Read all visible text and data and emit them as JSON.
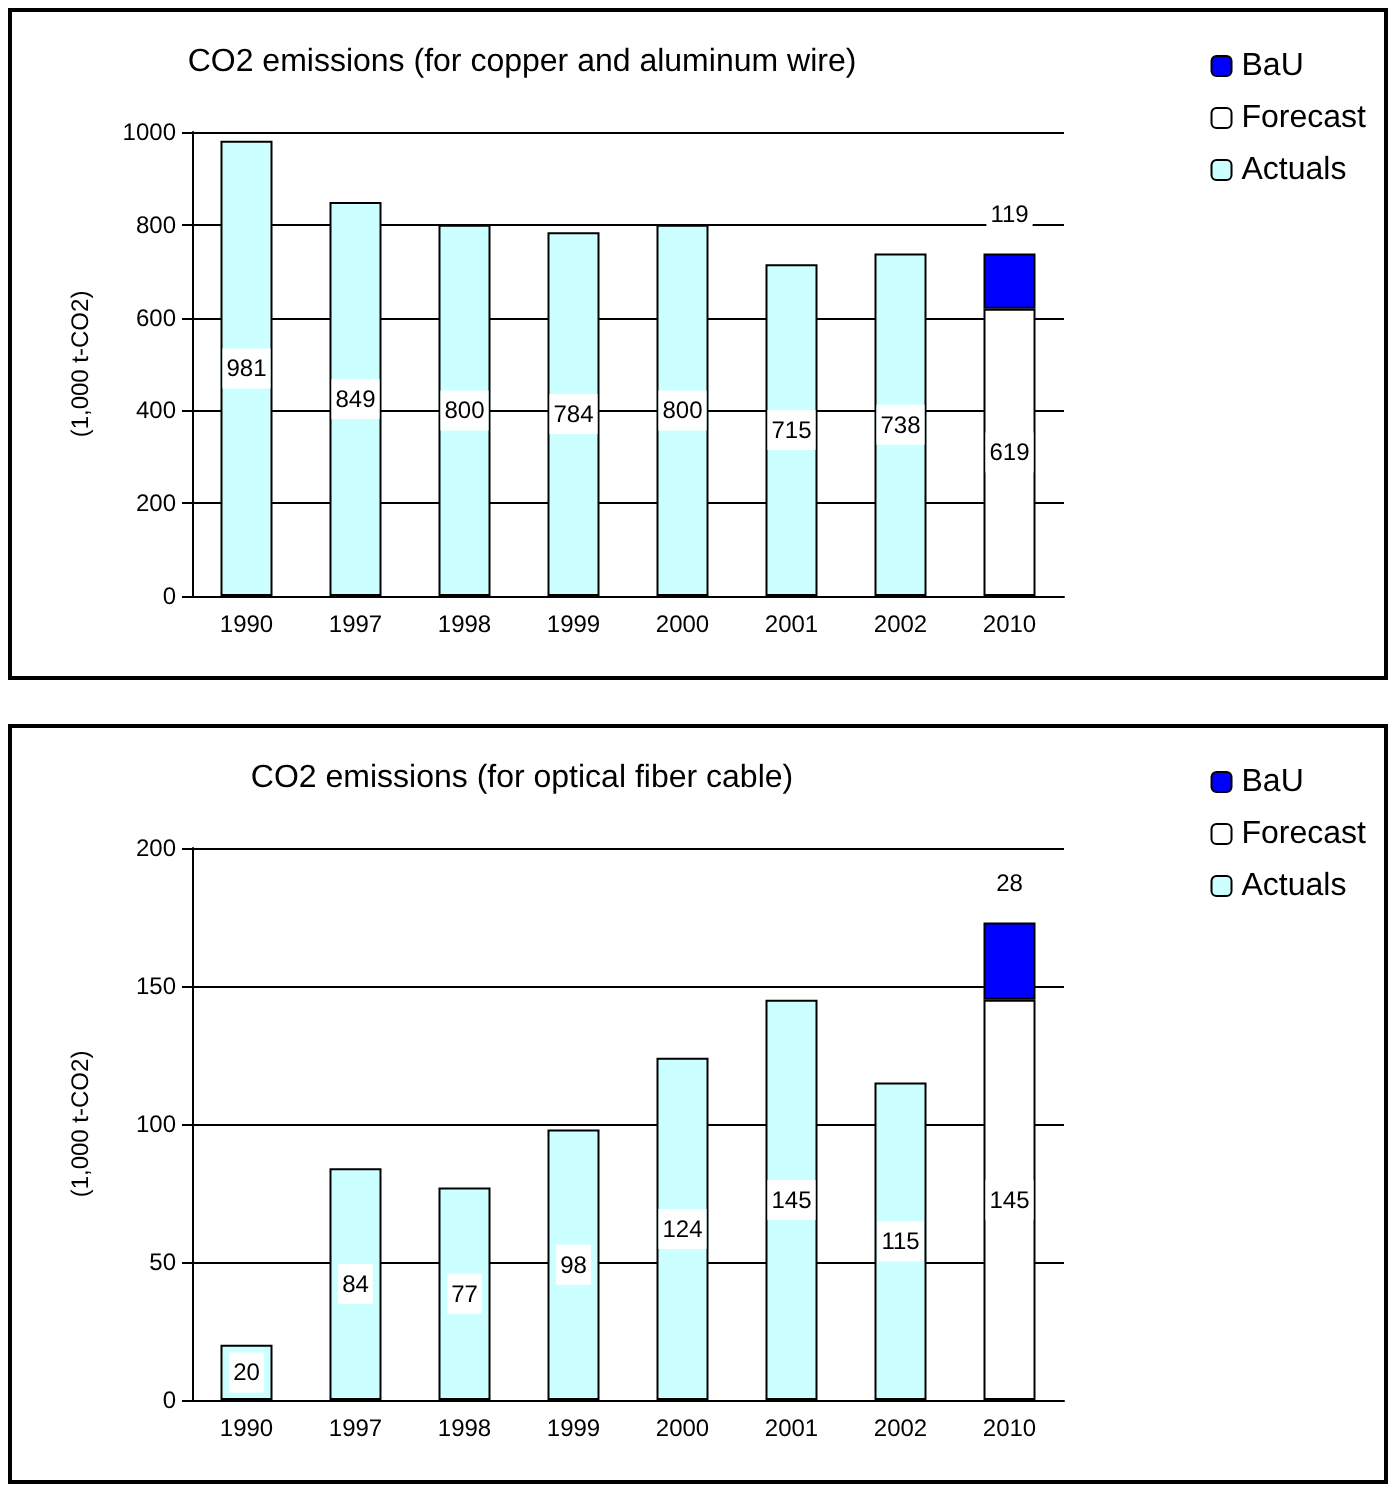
{
  "chart_data": [
    {
      "type": "bar",
      "title": "CO2 emissions (for copper and aluminum wire)",
      "ylabel": "(1,000 t-CO2)",
      "categories": [
        "1990",
        "1997",
        "1998",
        "1999",
        "2000",
        "2001",
        "2002",
        "2010"
      ],
      "stacked": true,
      "ylim": [
        0,
        1000
      ],
      "yticks": [
        0,
        200,
        400,
        600,
        800,
        1000
      ],
      "grid": "y",
      "legend": "top right",
      "data_labels": true,
      "series": [
        {
          "name": "Actuals",
          "color": "#ccffff",
          "values": [
            981,
            849,
            800,
            784,
            800,
            715,
            738,
            null
          ]
        },
        {
          "name": "Forecast",
          "color": "#ffffff",
          "values": [
            null,
            null,
            null,
            null,
            null,
            null,
            null,
            619
          ]
        },
        {
          "name": "BaU",
          "color": "#0000ff",
          "values": [
            null,
            null,
            null,
            null,
            null,
            null,
            null,
            119
          ]
        }
      ]
    },
    {
      "type": "bar",
      "title": "CO2 emissions (for optical fiber cable)",
      "ylabel": "(1,000 t-CO2)",
      "categories": [
        "1990",
        "1997",
        "1998",
        "1999",
        "2000",
        "2001",
        "2002",
        "2010"
      ],
      "stacked": true,
      "ylim": [
        0,
        200
      ],
      "yticks": [
        0,
        50,
        100,
        150,
        200
      ],
      "grid": "y",
      "legend": "top right",
      "data_labels": true,
      "series": [
        {
          "name": "Actuals",
          "color": "#ccffff",
          "values": [
            20,
            84,
            77,
            98,
            124,
            145,
            115,
            null
          ]
        },
        {
          "name": "Forecast",
          "color": "#ffffff",
          "values": [
            null,
            null,
            null,
            null,
            null,
            null,
            null,
            145
          ]
        },
        {
          "name": "BaU",
          "color": "#0000ff",
          "values": [
            null,
            null,
            null,
            null,
            null,
            null,
            null,
            28
          ]
        }
      ]
    }
  ]
}
